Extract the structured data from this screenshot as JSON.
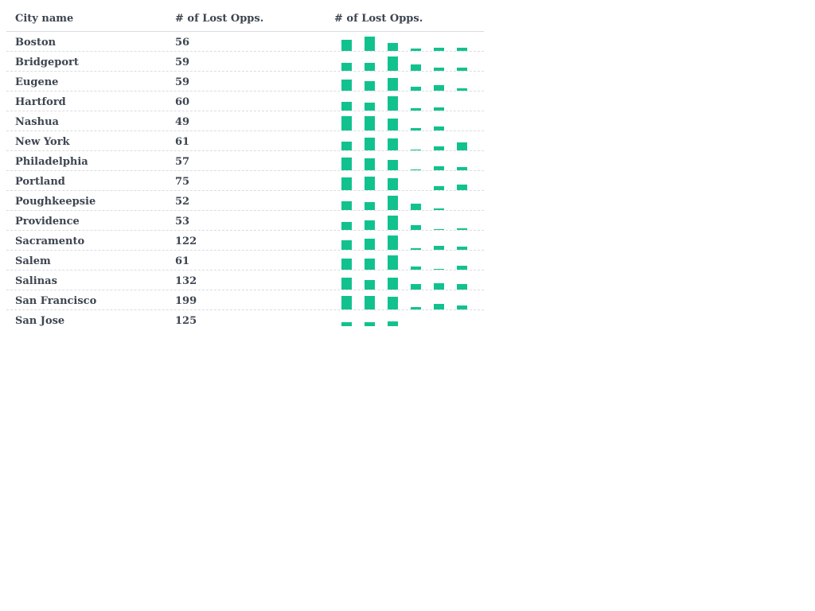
{
  "table": {
    "columns": [
      "City name",
      "# of Lost Opps.",
      "# of Lost Opps."
    ],
    "bar_color": "#12c28e",
    "rows": [
      {
        "city": "Boston",
        "count": "56",
        "spark": [
          0.8,
          1.0,
          0.55,
          0.15,
          0.2,
          0.2
        ]
      },
      {
        "city": "Bridgeport",
        "count": "59",
        "spark": [
          0.55,
          0.55,
          1.0,
          0.45,
          0.2,
          0.2
        ]
      },
      {
        "city": "Eugene",
        "count": "59",
        "spark": [
          0.8,
          0.65,
          0.9,
          0.25,
          0.4,
          0.15
        ]
      },
      {
        "city": "Hartford",
        "count": "60",
        "spark": [
          0.6,
          0.55,
          1.0,
          0.15,
          0.2,
          0.0
        ]
      },
      {
        "city": "Nashua",
        "count": "49",
        "spark": [
          1.0,
          1.0,
          0.85,
          0.15,
          0.3,
          0.0
        ]
      },
      {
        "city": "New York",
        "count": "61",
        "spark": [
          0.6,
          0.9,
          0.85,
          0.05,
          0.25,
          0.55
        ]
      },
      {
        "city": "Philadelphia",
        "count": "57",
        "spark": [
          0.9,
          0.85,
          0.7,
          0.05,
          0.25,
          0.2
        ]
      },
      {
        "city": "Portland",
        "count": "75",
        "spark": [
          0.9,
          0.95,
          0.85,
          0.0,
          0.25,
          0.4
        ]
      },
      {
        "city": "Poughkeepsie",
        "count": "52",
        "spark": [
          0.6,
          0.55,
          1.0,
          0.45,
          0.1,
          0.0
        ]
      },
      {
        "city": "Providence",
        "count": "53",
        "spark": [
          0.55,
          0.65,
          1.0,
          0.35,
          0.05,
          0.1
        ]
      },
      {
        "city": "Sacramento",
        "count": "122",
        "spark": [
          0.65,
          0.8,
          1.0,
          0.1,
          0.25,
          0.2
        ]
      },
      {
        "city": "Salem",
        "count": "61",
        "spark": [
          0.8,
          0.75,
          1.0,
          0.2,
          0.05,
          0.25
        ]
      },
      {
        "city": "Salinas",
        "count": "132",
        "spark": [
          0.85,
          0.65,
          0.85,
          0.4,
          0.45,
          0.4
        ]
      },
      {
        "city": "San Francisco",
        "count": "199",
        "spark": [
          0.95,
          0.95,
          0.9,
          0.15,
          0.4,
          0.25
        ]
      },
      {
        "city": "San Jose",
        "count": "125",
        "spark": [
          0.5,
          0.5,
          0.55,
          0.0,
          0.0,
          0.0
        ]
      }
    ]
  }
}
